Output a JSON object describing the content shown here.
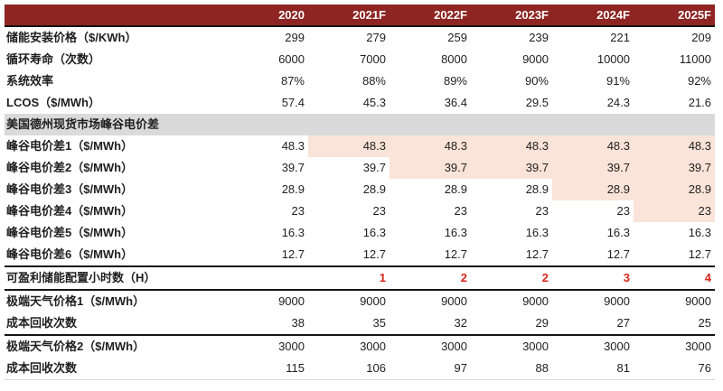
{
  "colors": {
    "header_bg": "#8E2522",
    "header_text": "#FFFFFF",
    "section_bg": "#DADADA",
    "highlight_bg": "#FAE3D8",
    "accent_red": "#D9261C",
    "rule_black": "#141414",
    "faint_rule": "#D9D9D9",
    "text": "#1F1F1F"
  },
  "chart_data": {
    "type": "table",
    "title": "",
    "corner_label": "",
    "columns": [
      "2020",
      "2021F",
      "2022F",
      "2023F",
      "2024F",
      "2025F"
    ],
    "rows": [
      {
        "kind": "data",
        "label": "储能安装价格（$/KWh）",
        "values": [
          "299",
          "279",
          "259",
          "239",
          "221",
          "209"
        ]
      },
      {
        "kind": "data",
        "label": "循环寿命（次数）",
        "values": [
          "6000",
          "7000",
          "8000",
          "9000",
          "10000",
          "11000"
        ]
      },
      {
        "kind": "data",
        "label": "系统效率",
        "values": [
          "87%",
          "88%",
          "89%",
          "90%",
          "91%",
          "92%"
        ]
      },
      {
        "kind": "data",
        "label": "LCOS（$/MWh）",
        "values": [
          "57.4",
          "45.3",
          "36.4",
          "29.5",
          "24.3",
          "21.6"
        ]
      },
      {
        "kind": "section",
        "label": "美国德州现货市场峰谷电价差",
        "values": []
      },
      {
        "kind": "data",
        "label": "峰谷电价差1（$/MWh）",
        "values": [
          "48.3",
          "48.3",
          "48.3",
          "48.3",
          "48.3",
          "48.3"
        ],
        "highlight_from": 1
      },
      {
        "kind": "data",
        "label": "峰谷电价差2（$/MWh）",
        "values": [
          "39.7",
          "39.7",
          "39.7",
          "39.7",
          "39.7",
          "39.7"
        ],
        "highlight_from": 2
      },
      {
        "kind": "data",
        "label": "峰谷电价差3（$/MWh）",
        "values": [
          "28.9",
          "28.9",
          "28.9",
          "28.9",
          "28.9",
          "28.9"
        ],
        "highlight_from": 4
      },
      {
        "kind": "data",
        "label": "峰谷电价差4（$/MWh）",
        "values": [
          "23",
          "23",
          "23",
          "23",
          "23",
          "23"
        ],
        "highlight_from": 5
      },
      {
        "kind": "data",
        "label": "峰谷电价差5（$/MWh）",
        "values": [
          "16.3",
          "16.3",
          "16.3",
          "16.3",
          "16.3",
          "16.3"
        ]
      },
      {
        "kind": "data",
        "label": "峰谷电价差6（$/MWh）",
        "values": [
          "12.7",
          "12.7",
          "12.7",
          "12.7",
          "12.7",
          "12.7"
        ]
      },
      {
        "kind": "summary",
        "label": "可盈利储能配置小时数（H）",
        "values": [
          "",
          "1",
          "2",
          "2",
          "3",
          "4"
        ]
      },
      {
        "kind": "data",
        "label": "极端天气价格1（$/MWh）",
        "values": [
          "9000",
          "9000",
          "9000",
          "9000",
          "9000",
          "9000"
        ]
      },
      {
        "kind": "data",
        "label": "成本回收次数",
        "values": [
          "38",
          "35",
          "32",
          "29",
          "27",
          "25"
        ],
        "rule_below": true
      },
      {
        "kind": "data",
        "label": "极端天气价格2（$/MWh）",
        "values": [
          "3000",
          "3000",
          "3000",
          "3000",
          "3000",
          "3000"
        ]
      },
      {
        "kind": "data",
        "label": "成本回收次数",
        "values": [
          "115",
          "106",
          "97",
          "88",
          "81",
          "76"
        ]
      }
    ]
  }
}
